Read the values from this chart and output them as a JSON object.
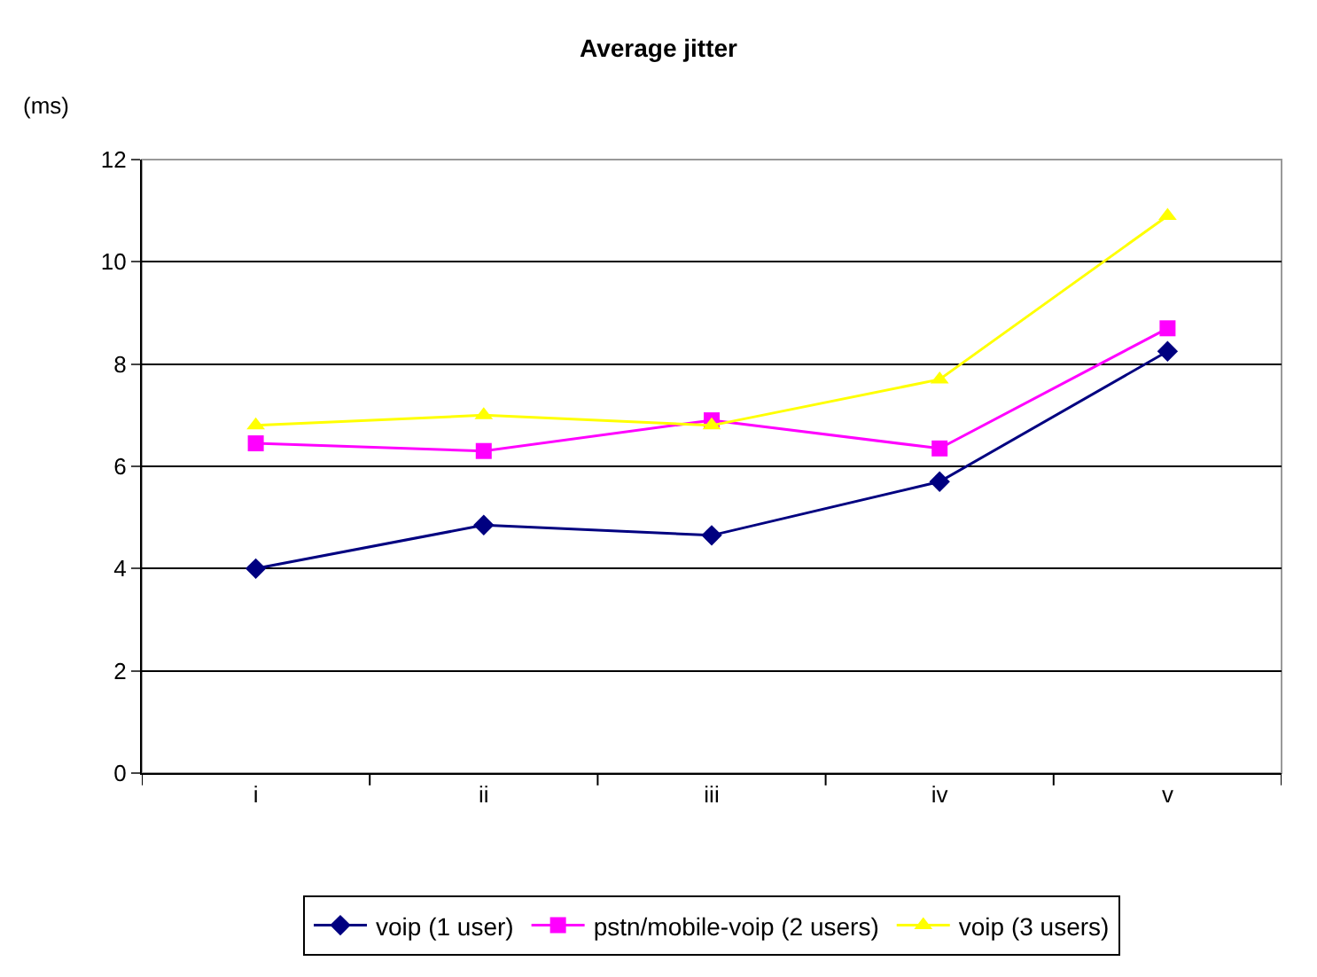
{
  "chart_data": {
    "type": "line",
    "title": "Average jitter",
    "ylabel": "(ms)",
    "categories": [
      "i",
      "ii",
      "iii",
      "iv",
      "v"
    ],
    "series": [
      {
        "name": "voip (1 user)",
        "color": "#000080",
        "marker": "diamond",
        "values": [
          4.0,
          4.85,
          4.65,
          5.7,
          8.25
        ]
      },
      {
        "name": "pstn/mobile-voip (2 users)",
        "color": "#ff00ff",
        "marker": "square",
        "values": [
          6.45,
          6.3,
          6.9,
          6.35,
          8.7
        ]
      },
      {
        "name": "voip (3 users)",
        "color": "#ffff00",
        "marker": "triangle",
        "values": [
          6.8,
          7.0,
          6.8,
          7.7,
          10.9
        ]
      }
    ],
    "ylim": [
      0,
      12
    ],
    "yticks": [
      0,
      2,
      4,
      6,
      8,
      10,
      12
    ],
    "grid": "y",
    "legend": "bottom"
  }
}
